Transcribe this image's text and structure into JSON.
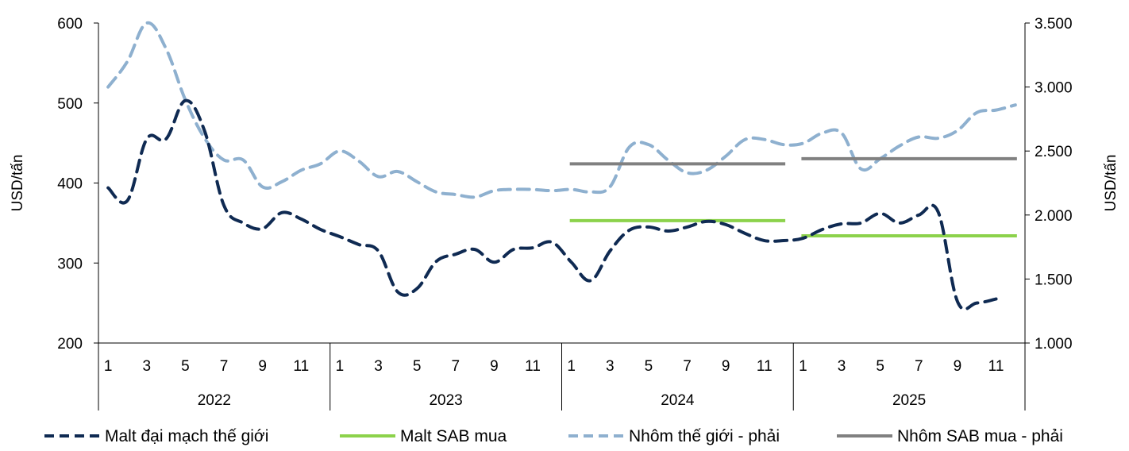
{
  "chart_data": {
    "type": "line",
    "x_months": [
      1,
      2,
      3,
      4,
      5,
      6,
      7,
      8,
      9,
      10,
      11,
      12,
      1,
      2,
      3,
      4,
      5,
      6,
      7,
      8,
      9,
      10,
      11,
      12,
      1,
      2,
      3,
      4,
      5,
      6,
      7,
      8,
      9,
      10,
      11,
      12,
      1,
      2,
      3,
      4,
      5,
      6,
      7,
      8,
      9,
      10,
      11,
      12
    ],
    "x_tick_labels": [
      "1",
      "3",
      "5",
      "7",
      "9",
      "11",
      "1",
      "3",
      "5",
      "7",
      "9",
      "11",
      "1",
      "3",
      "5",
      "7",
      "9",
      "11",
      "1",
      "3",
      "5",
      "7",
      "9",
      "11"
    ],
    "year_labels": [
      "2022",
      "2023",
      "2024",
      "2025"
    ],
    "y_left": {
      "label": "USD/tấn",
      "min": 200,
      "max": 600,
      "ticks": [
        "200",
        "300",
        "400",
        "500",
        "600"
      ]
    },
    "y_right": {
      "label": "USD/tấn",
      "min": 1000,
      "max": 3500,
      "ticks": [
        "1.000",
        "1.500",
        "2.000",
        "2.500",
        "3.000",
        "3.500"
      ]
    },
    "legend_position": "bottom",
    "series": [
      {
        "name": "Malt đại mạch thế giới",
        "axis": "left",
        "style": "dashed",
        "color": "#0f2a52",
        "values": [
          394,
          378,
          455,
          455,
          503,
          465,
          372,
          350,
          343,
          363,
          355,
          342,
          333,
          323,
          315,
          264,
          268,
          302,
          311,
          317,
          301,
          317,
          319,
          326,
          301,
          278,
          315,
          341,
          345,
          340,
          345,
          352,
          348,
          337,
          328,
          328,
          331,
          342,
          349,
          350,
          362,
          350,
          360,
          364,
          252,
          250,
          255,
          null
        ]
      },
      {
        "name": "Malt SAB mua",
        "axis": "left",
        "style": "solid",
        "color": "#8cd24b",
        "segments": [
          {
            "start_year": "2024",
            "start_month": 1,
            "end_year": "2024",
            "end_month": 12,
            "value": 353
          },
          {
            "start_year": "2025",
            "start_month": 1,
            "end_year": "2025",
            "end_month": 12,
            "value": 334
          }
        ]
      },
      {
        "name": "Nhôm thế giới - phải",
        "axis": "right",
        "style": "dashed",
        "color": "#8eb0cf",
        "values": [
          3000,
          3200,
          3500,
          3300,
          2900,
          2600,
          2430,
          2430,
          2220,
          2260,
          2350,
          2400,
          2500,
          2420,
          2300,
          2340,
          2260,
          2180,
          2160,
          2140,
          2190,
          2200,
          2200,
          2190,
          2200,
          2180,
          2220,
          2530,
          2550,
          2430,
          2330,
          2350,
          2460,
          2590,
          2590,
          2550,
          2560,
          2640,
          2640,
          2360,
          2440,
          2540,
          2610,
          2600,
          2660,
          2800,
          2820,
          2860
        ]
      },
      {
        "name": "Nhôm SAB mua - phải",
        "axis": "right",
        "style": "solid",
        "color": "#808080",
        "segments": [
          {
            "start_year": "2024",
            "start_month": 1,
            "end_year": "2024",
            "end_month": 12,
            "value": 2400
          },
          {
            "start_year": "2025",
            "start_month": 1,
            "end_year": "2025",
            "end_month": 12,
            "value": 2440
          }
        ]
      }
    ]
  }
}
